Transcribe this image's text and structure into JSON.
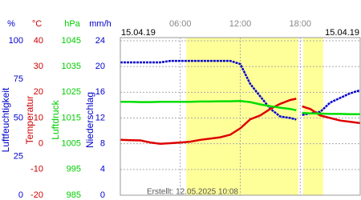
{
  "chart_data": {
    "type": "line",
    "date_left": "15.04.19",
    "date_right": "15.04.19",
    "footer": "Erstellt: 12.05.2025 10:08",
    "xlim": [
      0,
      24
    ],
    "xticks": [
      {
        "value": 6,
        "label": "06:00"
      },
      {
        "value": 12,
        "label": "12:00"
      },
      {
        "value": 18,
        "label": "18:00"
      }
    ],
    "grid": true,
    "shaded": [
      [
        6.6,
        17.8
      ],
      [
        18.3,
        20.3
      ]
    ],
    "shade_color": "#ffff99",
    "axes": [
      {
        "unit": "%",
        "title": "Luftfeuchtigkeit",
        "color": "#0000cc",
        "ylim": [
          0,
          100
        ],
        "yticks": [
          0,
          25,
          50,
          75,
          100
        ]
      },
      {
        "unit": "°C",
        "title": "Temperatur",
        "color": "#cc0000",
        "ylim": [
          -20,
          40
        ],
        "yticks": [
          -20,
          -10,
          0,
          10,
          20,
          30,
          40
        ]
      },
      {
        "unit": "hPa",
        "title": "Luftdruck",
        "color": "#00cc00",
        "ylim": [
          985,
          1045
        ],
        "yticks": [
          985,
          995,
          1005,
          1015,
          1025,
          1035,
          1045
        ]
      },
      {
        "unit": "mm/h",
        "title": "Niederschlag",
        "color": "#0000cc",
        "ylim": [
          0,
          24
        ],
        "yticks": [
          0,
          4,
          8,
          12,
          16,
          20,
          24
        ]
      }
    ],
    "x": [
      0,
      1,
      2,
      3,
      4,
      5,
      6,
      7,
      8,
      9,
      10,
      11,
      12,
      13,
      14,
      15,
      16,
      17,
      17.6,
      17.9,
      18.2,
      19,
      20,
      21,
      22,
      23,
      24
    ],
    "series": [
      {
        "axis": 0,
        "color": "#0000cc",
        "values": [
          86,
          86,
          86,
          86,
          86,
          87,
          87,
          87,
          87,
          87,
          87,
          87,
          85,
          72,
          64,
          56,
          51,
          50,
          49,
          null,
          52,
          53,
          54,
          60,
          63,
          66,
          68
        ]
      },
      {
        "axis": 1,
        "color": "#dd0000",
        "values": [
          1.5,
          1.4,
          1.3,
          0.5,
          0,
          0.2,
          0.5,
          0.8,
          1.5,
          2,
          2.5,
          3.5,
          6,
          9.5,
          11,
          13.5,
          15.5,
          17,
          17.5,
          null,
          14.5,
          13.5,
          11,
          10,
          9,
          8.5,
          8
        ]
      },
      {
        "axis": 2,
        "color": "#00dd00",
        "values": [
          1021.3,
          1021.3,
          1021.2,
          1021.2,
          1021.3,
          1021.3,
          1021.3,
          1021.3,
          1021.4,
          1021.4,
          1021.5,
          1021.5,
          1021.6,
          1021.2,
          1020.3,
          1019.6,
          1019,
          1018.5,
          1018,
          null,
          1017,
          1016.8,
          1016.7,
          1016.6,
          1016.6,
          1016.5,
          1016.5
        ]
      }
    ]
  }
}
